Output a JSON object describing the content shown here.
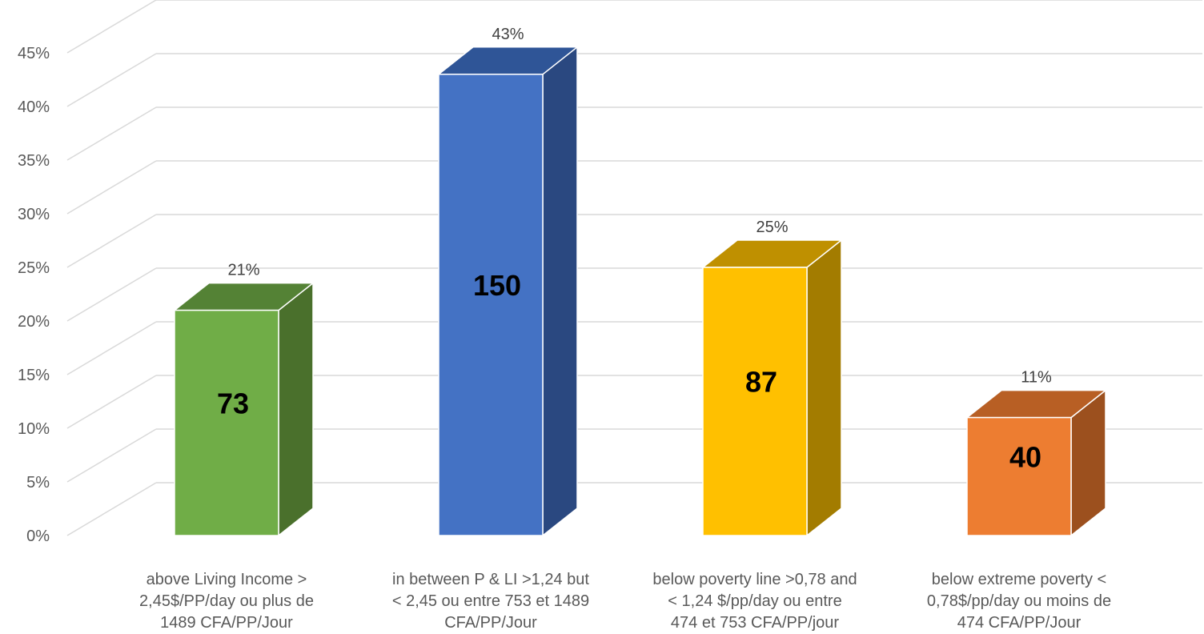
{
  "chart_data": {
    "type": "bar",
    "title": "",
    "xlabel": "",
    "ylabel": "",
    "ylim": [
      0,
      0.45
    ],
    "y_ticks": [
      "0%",
      "5%",
      "10%",
      "15%",
      "20%",
      "25%",
      "30%",
      "35%",
      "40%",
      "45%"
    ],
    "grid": true,
    "three_d": true,
    "categories": [
      [
        "above Living Income >",
        "2,45$/PP/day  ou plus de",
        "1489 CFA/PP/Jour"
      ],
      [
        "in between P & LI >1,24 but",
        "< 2,45 ou entre 753 et 1489",
        "CFA/PP/Jour"
      ],
      [
        "below poverty line >0,78 and",
        "< 1,24 $/pp/day ou entre",
        "474 et 753 CFA/PP/jour"
      ],
      [
        "below extreme poverty <",
        "0,78$/pp/day ou moins de",
        "474 CFA/PP/Jour"
      ]
    ],
    "values": [
      0.21,
      0.43,
      0.25,
      0.11
    ],
    "percent_labels": [
      "21%",
      "43%",
      "25%",
      "11%"
    ],
    "count_labels": [
      "73",
      "150",
      "87",
      "40"
    ],
    "colors": [
      {
        "front": "#70AD47",
        "top": "#548235",
        "side": "#4A702C"
      },
      {
        "front": "#4472C4",
        "top": "#2F5597",
        "side": "#2A4880"
      },
      {
        "front": "#FFC000",
        "top": "#BF9000",
        "side": "#A37C00"
      },
      {
        "front": "#ED7D31",
        "top": "#B85F24",
        "side": "#9C501E"
      }
    ]
  }
}
